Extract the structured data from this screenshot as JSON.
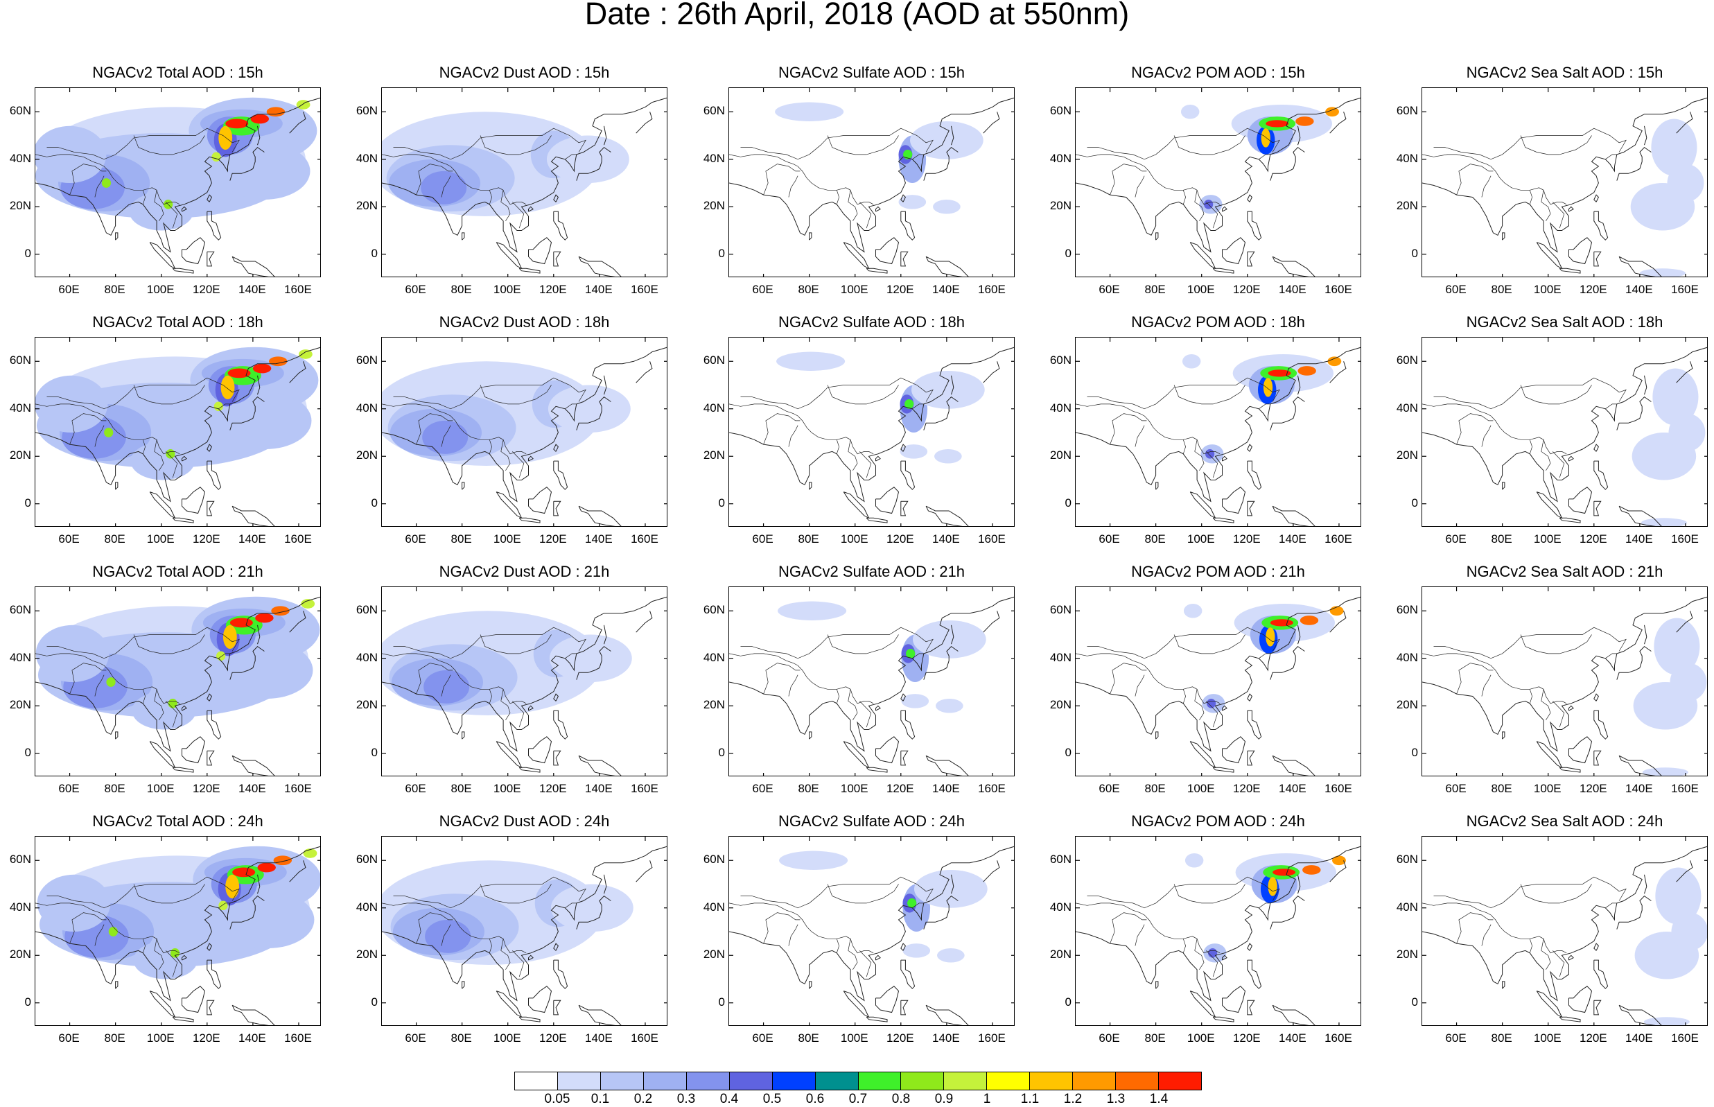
{
  "title": "Date : 26th April, 2018 (AOD at 550nm)",
  "panels": [
    [
      "NGACv2 Total AOD : 15h",
      "NGACv2 Dust AOD : 15h",
      "NGACv2 Sulfate AOD : 15h",
      "NGACv2 POM AOD : 15h",
      "NGACv2 Sea Salt AOD : 15h"
    ],
    [
      "NGACv2 Total AOD : 18h",
      "NGACv2 Dust AOD : 18h",
      "NGACv2 Sulfate AOD : 18h",
      "NGACv2 POM AOD : 18h",
      "NGACv2 Sea Salt AOD : 18h"
    ],
    [
      "NGACv2 Total AOD : 21h",
      "NGACv2 Dust AOD : 21h",
      "NGACv2 Sulfate AOD : 21h",
      "NGACv2 POM AOD : 21h",
      "NGACv2 Sea Salt AOD : 21h"
    ],
    [
      "NGACv2 Total AOD : 24h",
      "NGACv2 Dust AOD : 24h",
      "NGACv2 Sulfate AOD : 24h",
      "NGACv2 POM AOD : 24h",
      "NGACv2 Sea Salt  AOD : 24h"
    ]
  ],
  "y_ticks": [
    "60N",
    "40N",
    "20N",
    "0"
  ],
  "x_ticks": [
    "60E",
    "80E",
    "100E",
    "120E",
    "140E",
    "160E"
  ],
  "colorbar": {
    "labels": [
      "0.05",
      "0.1",
      "0.2",
      "0.3",
      "0.4",
      "0.5",
      "0.6",
      "0.7",
      "0.8",
      "0.9",
      "1",
      "1.1",
      "1.2",
      "1.3",
      "1.4"
    ],
    "colors": [
      "#ffffff",
      "#d3dcfa",
      "#b7c6f6",
      "#9fb1f2",
      "#8393ee",
      "#5f63e0",
      "#0040ff",
      "#00908f",
      "#3ff02a",
      "#8fe91b",
      "#c5f23b",
      "#ffff00",
      "#ffc400",
      "#ff9a00",
      "#ff6a00",
      "#ff1c00"
    ]
  }
}
